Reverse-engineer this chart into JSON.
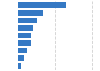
{
  "values": [
    208,
    108,
    83,
    67,
    58,
    55,
    38,
    26,
    12
  ],
  "bar_color": "#3579c4",
  "background_color": "#ffffff",
  "grid_color": "#d0d0d0",
  "figsize": [
    1.0,
    0.71
  ],
  "dpi": 100,
  "bar_height": 0.72,
  "xlim_max": 350
}
